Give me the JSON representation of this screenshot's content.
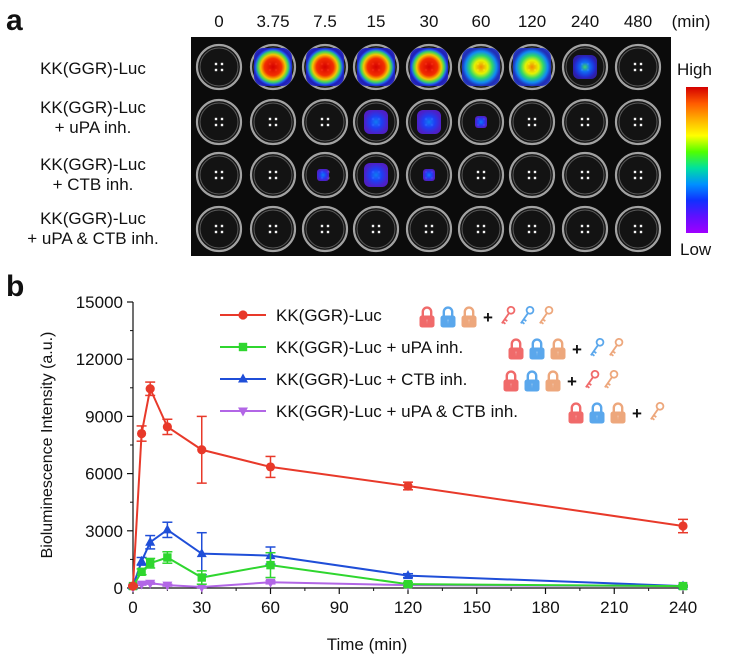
{
  "panel_a": {
    "letter": "a",
    "time_labels": [
      "0",
      "3.75",
      "7.5",
      "15",
      "30",
      "60",
      "120",
      "240",
      "480"
    ],
    "time_unit": "(min)",
    "rows": [
      {
        "line1": "KK(GGR)-Luc",
        "line2": ""
      },
      {
        "line1": "KK(GGR)-Luc",
        "line2": "+ uPA inh."
      },
      {
        "line1": "KK(GGR)-Luc",
        "line2": "+ CTB inh."
      },
      {
        "line1": "KK(GGR)-Luc",
        "line2": "+ uPA & CTB inh."
      }
    ],
    "signal_levels": [
      [
        0,
        0.85,
        1.0,
        0.9,
        0.9,
        0.65,
        0.55,
        0.3,
        0
      ],
      [
        0,
        0,
        0,
        0.2,
        0.2,
        0.05,
        0,
        0,
        0
      ],
      [
        0,
        0,
        0.12,
        0.22,
        0.12,
        0,
        0,
        0,
        0
      ],
      [
        0,
        0,
        0,
        0,
        0,
        0,
        0,
        0,
        0
      ]
    ],
    "scale_high": "High",
    "scale_low": "Low"
  },
  "panel_b": {
    "letter": "b"
  },
  "chart_data": {
    "type": "line",
    "xlabel": "Time (min)",
    "ylabel": "Bioluminescence Intensity (a.u.)",
    "xlim": [
      0,
      240
    ],
    "ylim": [
      0,
      15000
    ],
    "xticks": [
      0,
      30,
      60,
      90,
      120,
      150,
      180,
      210,
      240
    ],
    "yticks": [
      0,
      3000,
      6000,
      9000,
      12000,
      15000
    ],
    "legend_position": "top-right",
    "series": [
      {
        "name": "KK(GGR)-Luc",
        "color": "#e8392a",
        "marker": "circle",
        "x": [
          0,
          3.75,
          7.5,
          15,
          30,
          60,
          120,
          240
        ],
        "y": [
          100,
          8100,
          10450,
          8450,
          7250,
          6350,
          5350,
          3250
        ],
        "err": [
          50,
          400,
          350,
          400,
          1750,
          550,
          200,
          350
        ],
        "key_icons": [
          "lock-red",
          "lock-blue",
          "lock-orange",
          "plus",
          "key-red",
          "key-blue",
          "key-orange"
        ]
      },
      {
        "name": "KK(GGR)-Luc + uPA inh.",
        "color": "#2fd62f",
        "marker": "square",
        "x": [
          0,
          3.75,
          7.5,
          15,
          30,
          60,
          120,
          240
        ],
        "y": [
          100,
          850,
          1300,
          1600,
          550,
          1200,
          200,
          100
        ],
        "err": [
          30,
          150,
          250,
          300,
          350,
          650,
          100,
          50
        ],
        "key_icons": [
          "lock-red",
          "lock-blue",
          "lock-orange",
          "plus",
          "key-blue",
          "key-orange"
        ]
      },
      {
        "name": "KK(GGR)-Luc + CTB inh.",
        "color": "#1f4ed8",
        "marker": "triangle-up",
        "x": [
          0,
          3.75,
          7.5,
          15,
          30,
          60,
          120,
          240
        ],
        "y": [
          100,
          1400,
          2400,
          3050,
          1800,
          1700,
          650,
          100
        ],
        "err": [
          30,
          200,
          350,
          400,
          1100,
          450,
          100,
          50
        ],
        "key_icons": [
          "lock-red",
          "lock-blue",
          "lock-orange",
          "plus",
          "key-red",
          "key-orange"
        ]
      },
      {
        "name": "KK(GGR)-Luc + uPA & CTB inh.",
        "color": "#b266e6",
        "marker": "triangle-down",
        "x": [
          0,
          3.75,
          7.5,
          15,
          30,
          60,
          120,
          240
        ],
        "y": [
          50,
          200,
          250,
          150,
          50,
          300,
          150,
          100
        ],
        "err": [
          20,
          50,
          50,
          50,
          30,
          80,
          50,
          30
        ],
        "key_icons": [
          "lock-red",
          "lock-blue",
          "lock-orange",
          "plus",
          "key-orange"
        ]
      }
    ],
    "icon_colors": {
      "red": "#f06a6a",
      "blue": "#5aa7ec",
      "orange": "#eda77c",
      "plus": "#111111"
    }
  }
}
